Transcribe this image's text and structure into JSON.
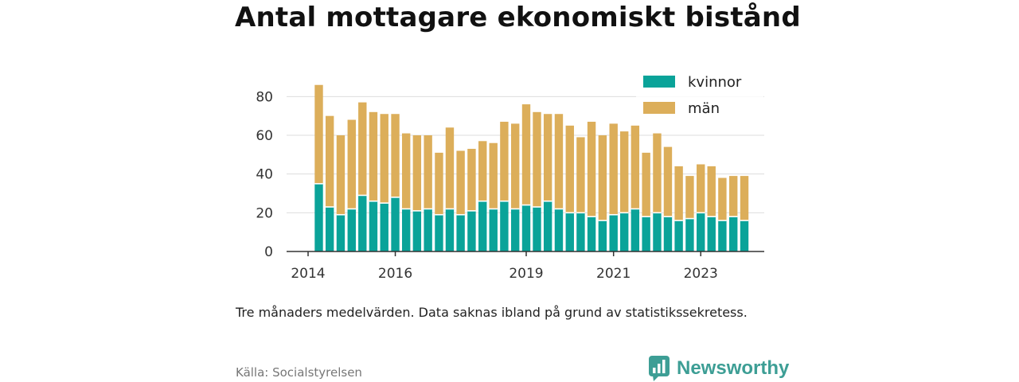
{
  "title": "Antal mottagare ekonomiskt bistånd",
  "note": "Tre månaders medelvärden. Data saknas ibland på grund av statistikssekretess.",
  "source": "Källa: Socialstyrelsen",
  "brand": {
    "name": "Newsworthy",
    "icon": "bar-chart-bubble-icon",
    "color": "#3d9e95"
  },
  "colors": {
    "kvinnor": "#0aa399",
    "man": "#dcae5a",
    "grid": "#dddddd",
    "axis": "#333333"
  },
  "chart_data": {
    "type": "bar",
    "stacked": true,
    "title": "Antal mottagare ekonomiskt bistånd",
    "xlabel": "",
    "ylabel": "",
    "ylim": [
      0,
      90
    ],
    "yticks": [
      0,
      20,
      40,
      60,
      80
    ],
    "xticks": [
      "2014",
      "2016",
      "2019",
      "2021",
      "2023"
    ],
    "grid": true,
    "legend_position": "top-right",
    "x": [
      "2014-04",
      "2014-07",
      "2014-10",
      "2015-01",
      "2015-04",
      "2015-07",
      "2015-10",
      "2016-01",
      "2016-04",
      "2016-07",
      "2016-10",
      "2017-01",
      "2017-04",
      "2017-07",
      "2017-10",
      "2018-01",
      "2018-04",
      "2018-07",
      "2018-10",
      "2019-01",
      "2019-04",
      "2019-07",
      "2019-10",
      "2020-01",
      "2020-04",
      "2020-07",
      "2020-10",
      "2021-01",
      "2021-04",
      "2021-07",
      "2021-10",
      "2022-01",
      "2022-04",
      "2022-07",
      "2022-10",
      "2023-01",
      "2023-04",
      "2023-07",
      "2023-10",
      "2024-01"
    ],
    "series": [
      {
        "name": "kvinnor",
        "color": "#0aa399",
        "values": [
          35,
          23,
          19,
          22,
          29,
          26,
          25,
          28,
          22,
          21,
          22,
          19,
          22,
          19,
          21,
          26,
          22,
          26,
          22,
          24,
          23,
          26,
          22,
          20,
          20,
          18,
          16,
          19,
          20,
          22,
          18,
          20,
          18,
          16,
          17,
          20,
          18,
          16,
          18,
          16
        ]
      },
      {
        "name": "män",
        "color": "#dcae5a",
        "values": [
          51,
          47,
          41,
          46,
          48,
          46,
          46,
          43,
          39,
          39,
          38,
          32,
          42,
          33,
          32,
          31,
          34,
          41,
          44,
          52,
          49,
          45,
          49,
          45,
          39,
          49,
          44,
          47,
          42,
          43,
          33,
          41,
          36,
          28,
          22,
          25,
          26,
          22,
          21,
          23
        ]
      }
    ]
  }
}
